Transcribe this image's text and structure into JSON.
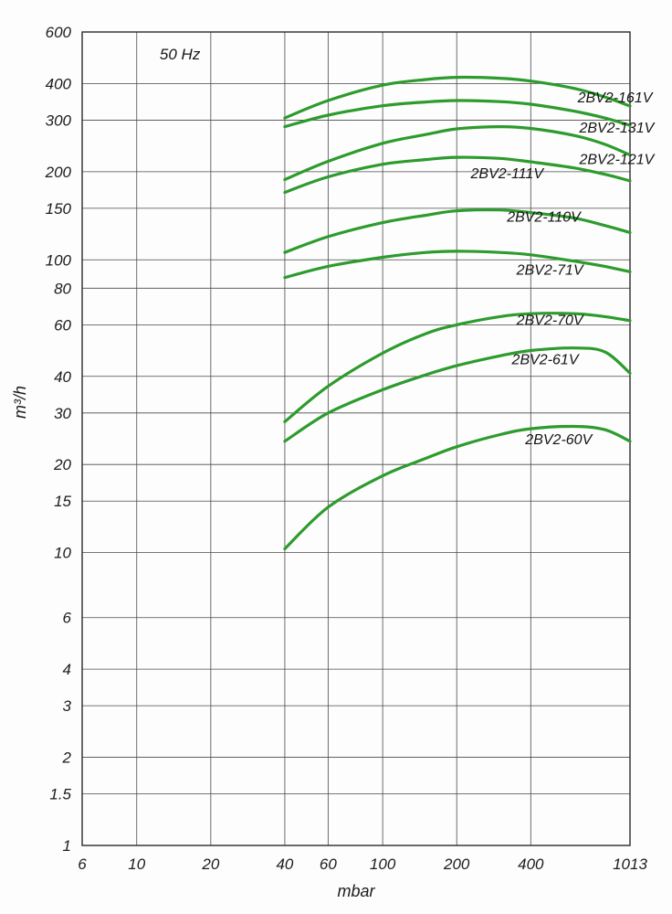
{
  "chart_data": {
    "type": "line",
    "title": "",
    "xlabel": "mbar",
    "ylabel": "m³/h",
    "x_scale": "log",
    "y_scale": "log",
    "xlim": [
      6,
      1013
    ],
    "ylim": [
      1,
      600
    ],
    "x_ticks": [
      6,
      10,
      20,
      40,
      60,
      100,
      200,
      400,
      1013
    ],
    "y_ticks": [
      1,
      1.5,
      2,
      3,
      4,
      6,
      10,
      15,
      20,
      30,
      40,
      60,
      80,
      100,
      150,
      200,
      300,
      400,
      600
    ],
    "grid": true,
    "curve_color": "#2d9b2d",
    "grid_color": "#4a4a4a",
    "frame_color": "#2a2a2a",
    "annotation": {
      "text": "50 Hz",
      "x": 12.4,
      "y": 484
    },
    "x": [
      40,
      60,
      100,
      150,
      200,
      300,
      400,
      600,
      800,
      1013
    ],
    "series": [
      {
        "name": "2BV2-161V",
        "values": [
          305,
          350,
          395,
          413,
          420,
          417,
          408,
          385,
          360,
          335
        ],
        "label_x": 620,
        "label_y": 345
      },
      {
        "name": "2BV2-131V",
        "values": [
          285,
          312,
          336,
          346,
          350,
          347,
          340,
          322,
          305,
          288
        ],
        "label_x": 630,
        "label_y": 272
      },
      {
        "name": "2BV2-121V",
        "values": [
          188,
          217,
          250,
          268,
          280,
          285,
          281,
          266,
          248,
          228
        ],
        "label_x": 630,
        "label_y": 212
      },
      {
        "name": "2BV2-111V",
        "values": [
          170,
          192,
          212,
          220,
          224,
          222,
          216,
          206,
          196,
          186
        ],
        "label_x": 228,
        "label_y": 190
      },
      {
        "name": "2BV2-110V",
        "values": [
          106,
          120,
          134,
          142,
          147,
          148,
          145,
          139,
          131,
          124
        ],
        "label_x": 320,
        "label_y": 135
      },
      {
        "name": "2BV2-71V",
        "values": [
          87,
          95,
          102,
          106,
          107,
          106,
          104,
          99,
          95,
          91
        ],
        "label_x": 350,
        "label_y": 89
      },
      {
        "name": "2BV2-70V",
        "values": [
          28,
          37,
          48,
          56,
          60,
          64,
          65.5,
          65.5,
          64,
          62
        ],
        "label_x": 350,
        "label_y": 60
      },
      {
        "name": "2BV2-61V",
        "values": [
          24,
          30,
          36,
          40.5,
          43.5,
          47,
          49,
          50,
          48.5,
          41
        ],
        "label_x": 335,
        "label_y": 44
      },
      {
        "name": "2BV2-60V",
        "values": [
          10.3,
          14.3,
          18.3,
          21,
          23,
          25.3,
          26.5,
          27,
          26.3,
          24
        ],
        "label_x": 380,
        "label_y": 23.5
      }
    ]
  }
}
